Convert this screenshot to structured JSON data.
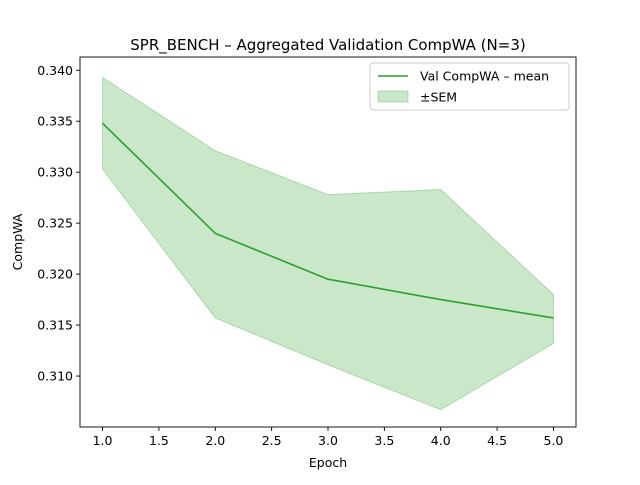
{
  "chart_data": {
    "type": "line",
    "title": "SPR_BENCH – Aggregated Validation CompWA (N=3)",
    "xlabel": "Epoch",
    "ylabel": "CompWA",
    "x": [
      1.0,
      2.0,
      3.0,
      4.0,
      5.0
    ],
    "series": [
      {
        "name": "Val CompWA – mean",
        "color": "#2ca02c",
        "values": [
          0.3348,
          0.324,
          0.3195,
          0.3175,
          0.3157
        ]
      }
    ],
    "band": {
      "name": "±SEM",
      "color": "#2ca02c",
      "alpha": 0.25,
      "lower": [
        0.3303,
        0.3157,
        0.3111,
        0.3067,
        0.3132
      ],
      "upper": [
        0.3393,
        0.3321,
        0.3278,
        0.3283,
        0.318
      ]
    },
    "xlim": [
      0.8,
      5.2
    ],
    "ylim": [
      0.305,
      0.3413
    ],
    "xticks": [
      "1.0",
      "1.5",
      "2.0",
      "2.5",
      "3.0",
      "3.5",
      "4.0",
      "4.5",
      "5.0"
    ],
    "yticks": [
      "0.310",
      "0.315",
      "0.320",
      "0.325",
      "0.330",
      "0.335",
      "0.340"
    ],
    "legend_position": "top-right",
    "grid": false
  }
}
